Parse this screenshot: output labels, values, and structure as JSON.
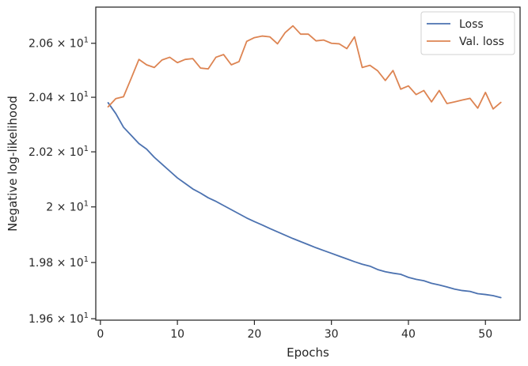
{
  "chart_data": {
    "type": "line",
    "title": "",
    "xlabel": "Epochs",
    "ylabel": "Negative log-likelihood",
    "xlim": [
      -0.6,
      54.5
    ],
    "ylim": [
      19.595,
      20.735
    ],
    "y_scale": "log",
    "grid": false,
    "legend_position": "top-right",
    "x_ticks": [
      {
        "value": 0,
        "label": "0"
      },
      {
        "value": 10,
        "label": "10"
      },
      {
        "value": 20,
        "label": "20"
      },
      {
        "value": 30,
        "label": "30"
      },
      {
        "value": 40,
        "label": "40"
      },
      {
        "value": 50,
        "label": "50"
      }
    ],
    "y_ticks": [
      {
        "value": 19.6,
        "base": "1.96",
        "sup": "1"
      },
      {
        "value": 19.8,
        "base": "1.98",
        "sup": "1"
      },
      {
        "value": 20.0,
        "base": "2",
        "sup": "1"
      },
      {
        "value": 20.2,
        "base": "2.02",
        "sup": "1"
      },
      {
        "value": 20.4,
        "base": "2.04",
        "sup": "1"
      },
      {
        "value": 20.6,
        "base": "2.06",
        "sup": "1"
      }
    ],
    "x": [
      1,
      2,
      3,
      4,
      5,
      6,
      7,
      8,
      9,
      10,
      11,
      12,
      13,
      14,
      15,
      16,
      17,
      18,
      19,
      20,
      21,
      22,
      23,
      24,
      25,
      26,
      27,
      28,
      29,
      30,
      31,
      32,
      33,
      34,
      35,
      36,
      37,
      38,
      39,
      40,
      41,
      42,
      43,
      44,
      45,
      46,
      47,
      48,
      49,
      50,
      51,
      52
    ],
    "series": [
      {
        "name": "Loss",
        "color": "#4c72b0",
        "values": [
          20.38,
          20.34,
          20.29,
          20.26,
          20.23,
          20.21,
          20.18,
          20.155,
          20.13,
          20.105,
          20.085,
          20.065,
          20.05,
          20.033,
          20.02,
          20.005,
          19.99,
          19.975,
          19.96,
          19.947,
          19.935,
          19.922,
          19.91,
          19.898,
          19.886,
          19.875,
          19.864,
          19.853,
          19.843,
          19.833,
          19.823,
          19.813,
          19.803,
          19.794,
          19.787,
          19.775,
          19.767,
          19.762,
          19.758,
          19.747,
          19.74,
          19.735,
          19.726,
          19.72,
          19.713,
          19.705,
          19.7,
          19.697,
          19.689,
          19.686,
          19.682,
          19.675
        ]
      },
      {
        "name": "Val. loss",
        "color": "#dd8452",
        "values": [
          20.365,
          20.395,
          20.402,
          20.47,
          20.54,
          20.52,
          20.51,
          20.538,
          20.548,
          20.528,
          20.54,
          20.543,
          20.508,
          20.505,
          20.548,
          20.558,
          20.52,
          20.532,
          20.607,
          20.621,
          20.627,
          20.624,
          20.598,
          20.64,
          20.665,
          20.634,
          20.634,
          20.609,
          20.612,
          20.6,
          20.598,
          20.58,
          20.624,
          20.51,
          20.518,
          20.498,
          20.462,
          20.499,
          20.43,
          20.442,
          20.41,
          20.425,
          20.383,
          20.425,
          20.377,
          20.383,
          20.39,
          20.396,
          20.36,
          20.418,
          20.357,
          20.381
        ]
      }
    ]
  }
}
